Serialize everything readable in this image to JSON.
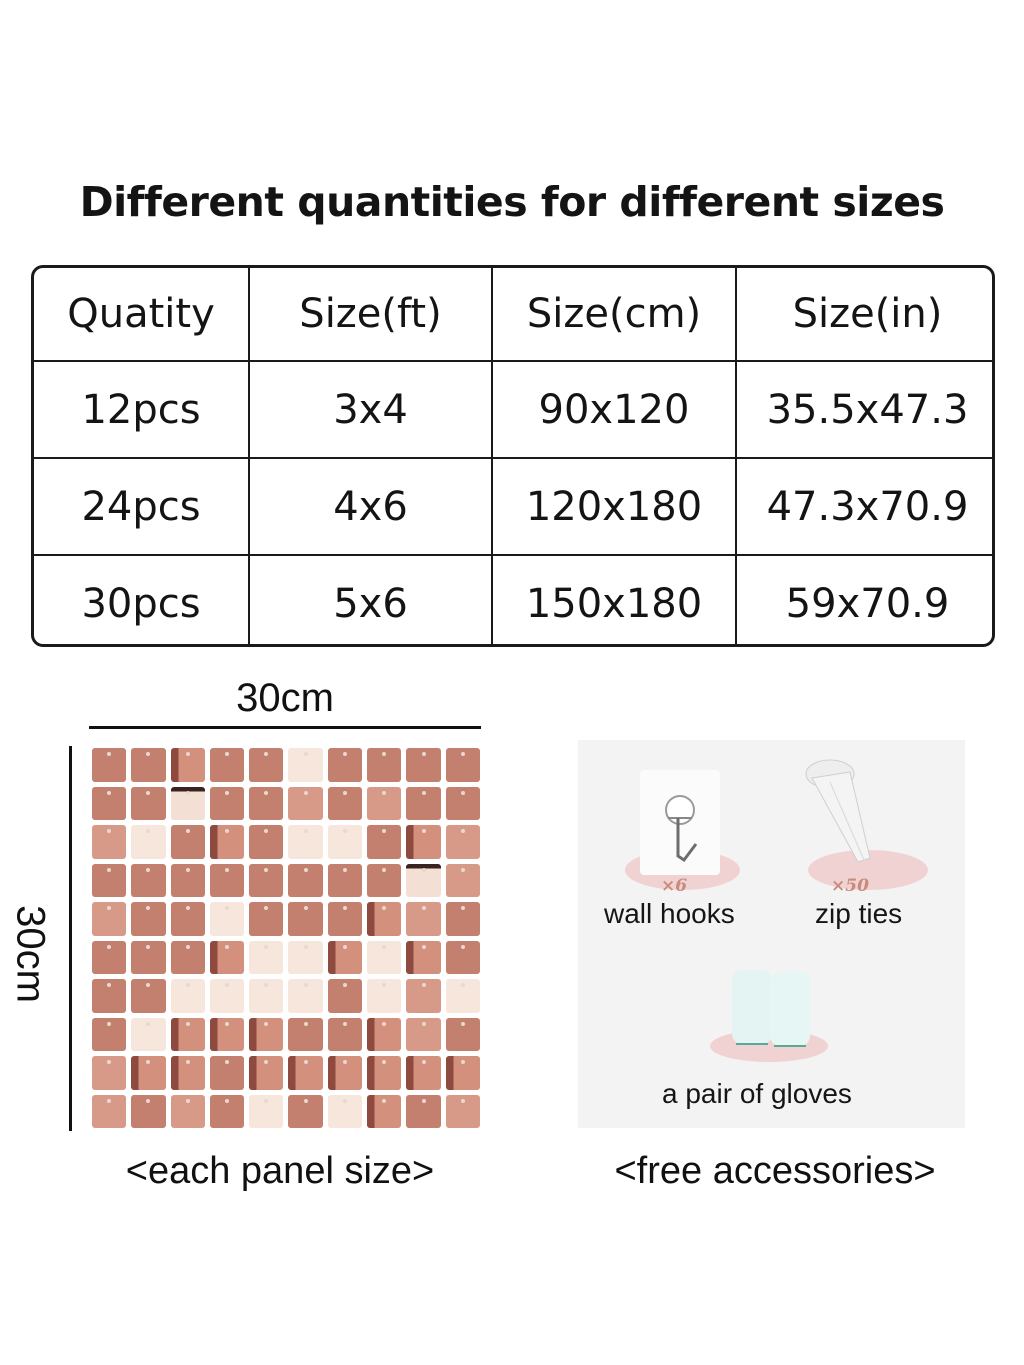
{
  "title": "Different quantities for different sizes",
  "table": {
    "headers": [
      "Quatity",
      "Size(ft)",
      "Size(cm)",
      "Size(in)"
    ],
    "rows": [
      [
        "12pcs",
        "3x4",
        "90x120",
        "35.5x47.3"
      ],
      [
        "24pcs",
        "4x6",
        "120x180",
        "47.3x70.9"
      ],
      [
        "30pcs",
        "5x6",
        "150x180",
        "59x70.9"
      ]
    ]
  },
  "panel": {
    "width_label": "30cm",
    "height_label": "30cm",
    "caption": "<each panel size>",
    "color": "#c4806e"
  },
  "accessories": {
    "caption": "<free accessories>",
    "items": [
      {
        "icon": "wall-hook-icon",
        "qty": "×6",
        "label": "wall hooks"
      },
      {
        "icon": "zip-ties-icon",
        "qty": "×50",
        "label": "zip ties"
      },
      {
        "icon": "gloves-icon",
        "qty": "",
        "label": "a pair of gloves"
      }
    ]
  }
}
